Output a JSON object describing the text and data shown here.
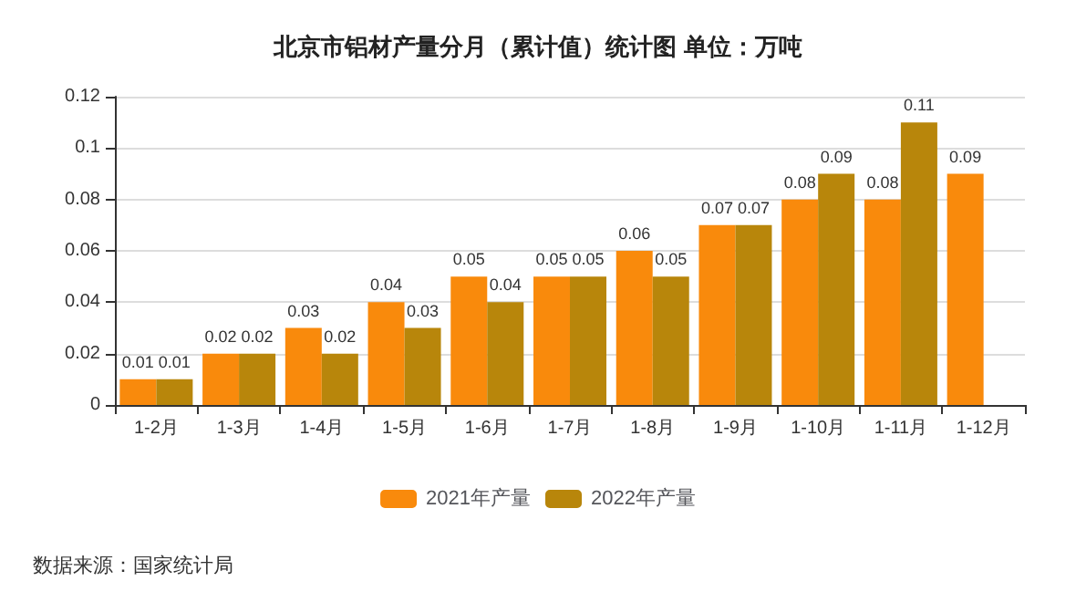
{
  "chart_data": {
    "type": "bar",
    "title": "北京市铝材产量分月（累计值）统计图 单位：万吨",
    "categories": [
      "1-2月",
      "1-3月",
      "1-4月",
      "1-5月",
      "1-6月",
      "1-7月",
      "1-8月",
      "1-9月",
      "1-10月",
      "1-11月",
      "1-12月"
    ],
    "series": [
      {
        "name": "2021年产量",
        "color": "#f98a0c",
        "values": [
          0.01,
          0.02,
          0.03,
          0.04,
          0.05,
          0.05,
          0.06,
          0.07,
          0.08,
          0.08,
          0.09
        ]
      },
      {
        "name": "2022年产量",
        "color": "#b8860b",
        "values": [
          0.01,
          0.02,
          0.02,
          0.03,
          0.04,
          0.05,
          0.05,
          0.07,
          0.09,
          0.11,
          null
        ]
      }
    ],
    "ylim": [
      0,
      0.12
    ],
    "yticks": [
      0,
      0.02,
      0.04,
      0.06,
      0.08,
      0.1,
      0.12
    ],
    "grid": "y",
    "legend": "bottom",
    "data_labels": true,
    "annotations": [
      "数据来源：国家统计局"
    ]
  }
}
